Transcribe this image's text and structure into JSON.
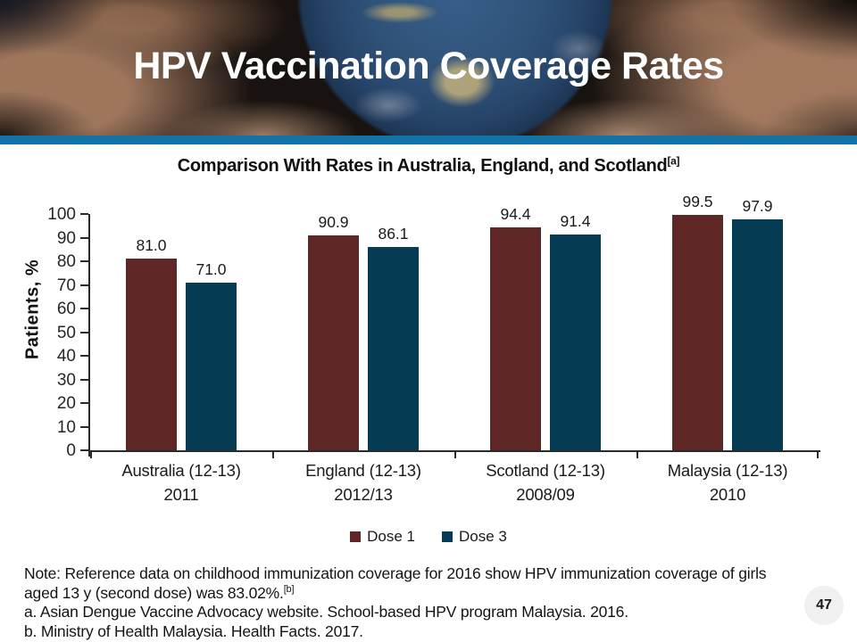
{
  "slide": {
    "title": "HPV Vaccination Coverage Rates",
    "page_number": "47"
  },
  "chart": {
    "subtitle": "Comparison With Rates in Australia, England, and Scotland",
    "subtitle_superscript": "[a]",
    "ylabel": "Patients, %"
  },
  "chart_data": {
    "type": "bar",
    "title": "Comparison With Rates in Australia, England, and Scotland[a]",
    "xlabel": "",
    "ylabel": "Patients, %",
    "ylim": [
      0,
      100
    ],
    "ytick_step": 10,
    "grid": false,
    "legend_position": "bottom",
    "categories": [
      {
        "line1": "Australia (12-13)",
        "line2": "2011"
      },
      {
        "line1": "England (12-13)",
        "line2": "2012/13"
      },
      {
        "line1": "Scotland (12-13)",
        "line2": "2008/09"
      },
      {
        "line1": "Malaysia (12-13)",
        "line2": "2010"
      }
    ],
    "series": [
      {
        "name": "Dose 1",
        "color": "#5F2626",
        "values": [
          81.0,
          90.9,
          94.4,
          99.5
        ]
      },
      {
        "name": "Dose 3",
        "color": "#063C53",
        "values": [
          71.0,
          86.1,
          91.4,
          97.9
        ]
      }
    ]
  },
  "notes": {
    "line1": "Note: Reference data on childhood immunization coverage for 2016 show HPV immunization coverage of girls",
    "line2": "aged 13 y (second dose) was 83.02%.",
    "line2_superscript": "[b]",
    "footnote_a": "a. Asian Dengue Vaccine Advocacy website. School-based HPV program Malaysia. 2016.",
    "footnote_b": "b. Ministry of Health Malaysia. Health Facts. 2017."
  },
  "colors": {
    "accent_bar": "#1273A9",
    "dose1": "#5F2626",
    "dose3": "#063C53",
    "page_badge_bg": "#F0F0F0"
  }
}
